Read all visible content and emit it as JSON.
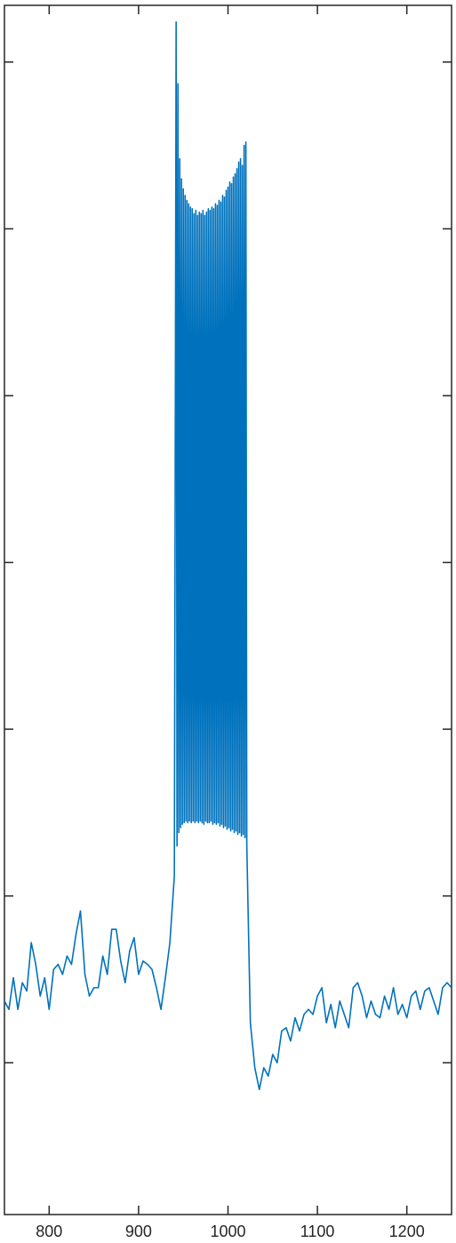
{
  "chart_data": {
    "type": "line",
    "xlim": [
      750,
      1250
    ],
    "xticks": [
      800,
      900,
      1000,
      1100,
      1200
    ],
    "ylim": [
      0.09,
      7.34
    ],
    "yticks": [
      1,
      2,
      3,
      4,
      5,
      6,
      7
    ],
    "grid": false,
    "series": [
      {
        "color": "#0072bd",
        "x": [
          750,
          755,
          760,
          765,
          770,
          775,
          780,
          785,
          790,
          795,
          800,
          805,
          810,
          815,
          820,
          825,
          830,
          835,
          840,
          845,
          850,
          855,
          860,
          865,
          870,
          875,
          880,
          885,
          890,
          895,
          900,
          905,
          910,
          915,
          920,
          925,
          930,
          935,
          940,
          942,
          943,
          944,
          945,
          946,
          947,
          948,
          949,
          950,
          951,
          952,
          953,
          954,
          955,
          956,
          957,
          958,
          959,
          960,
          961,
          962,
          963,
          964,
          965,
          966,
          967,
          968,
          969,
          970,
          971,
          972,
          973,
          974,
          975,
          976,
          977,
          978,
          979,
          980,
          981,
          982,
          983,
          984,
          985,
          986,
          987,
          988,
          989,
          990,
          991,
          992,
          993,
          994,
          995,
          996,
          997,
          998,
          999,
          1000,
          1001,
          1002,
          1003,
          1004,
          1005,
          1006,
          1007,
          1008,
          1009,
          1010,
          1011,
          1012,
          1013,
          1014,
          1015,
          1016,
          1017,
          1018,
          1019,
          1020,
          1021,
          1023,
          1025,
          1030,
          1035,
          1040,
          1045,
          1050,
          1055,
          1060,
          1065,
          1070,
          1075,
          1080,
          1085,
          1090,
          1095,
          1100,
          1105,
          1110,
          1115,
          1120,
          1125,
          1130,
          1135,
          1140,
          1145,
          1150,
          1155,
          1160,
          1165,
          1170,
          1175,
          1180,
          1185,
          1190,
          1195,
          1200,
          1205,
          1210,
          1215,
          1220,
          1225,
          1230,
          1235,
          1240,
          1245,
          1250
        ],
        "values": [
          1.37,
          1.32,
          1.51,
          1.32,
          1.48,
          1.43,
          1.72,
          1.59,
          1.4,
          1.51,
          1.32,
          1.56,
          1.59,
          1.53,
          1.64,
          1.59,
          1.77,
          1.91,
          1.53,
          1.4,
          1.45,
          1.45,
          1.64,
          1.53,
          1.8,
          1.8,
          1.61,
          1.48,
          1.67,
          1.75,
          1.53,
          1.61,
          1.59,
          1.56,
          1.45,
          1.32,
          1.51,
          1.72,
          2.12,
          7.24,
          2.3,
          6.87,
          2.38,
          6.42,
          2.41,
          6.3,
          2.43,
          6.24,
          2.44,
          6.2,
          2.45,
          6.17,
          2.44,
          6.15,
          2.45,
          6.13,
          2.44,
          6.12,
          2.45,
          6.09,
          2.44,
          6.11,
          2.45,
          6.08,
          2.44,
          6.1,
          2.45,
          6.09,
          2.44,
          6.11,
          2.43,
          6.08,
          2.45,
          6.1,
          2.44,
          6.12,
          2.44,
          6.11,
          2.45,
          6.13,
          2.43,
          6.12,
          2.44,
          6.15,
          2.43,
          6.14,
          2.44,
          6.17,
          2.42,
          6.16,
          2.43,
          6.2,
          2.41,
          6.19,
          2.42,
          6.23,
          2.4,
          6.25,
          2.41,
          6.28,
          2.39,
          6.27,
          2.4,
          6.31,
          2.38,
          6.33,
          2.39,
          6.36,
          2.37,
          6.4,
          2.38,
          6.42,
          2.36,
          6.38,
          2.37,
          6.5,
          2.35,
          6.52,
          2.31,
          1.77,
          1.24,
          0.97,
          0.84,
          0.97,
          0.92,
          1.05,
          1.0,
          1.19,
          1.21,
          1.13,
          1.27,
          1.19,
          1.29,
          1.32,
          1.29,
          1.4,
          1.45,
          1.24,
          1.35,
          1.21,
          1.37,
          1.29,
          1.21,
          1.45,
          1.48,
          1.4,
          1.27,
          1.37,
          1.29,
          1.27,
          1.4,
          1.32,
          1.45,
          1.29,
          1.35,
          1.27,
          1.4,
          1.43,
          1.32,
          1.43,
          1.45,
          1.37,
          1.29,
          1.45,
          1.48,
          1.45
        ]
      }
    ]
  }
}
